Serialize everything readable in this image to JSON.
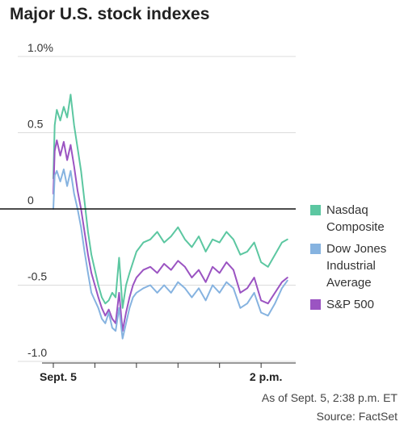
{
  "title": "Major U.S. stock indexes",
  "note_asof": "As of Sept. 5, 2:38 p.m. ET",
  "note_source": "Source: FactSet",
  "colors": {
    "nasdaq": "#5cc7a1",
    "dow": "#86b3e0",
    "sp500": "#9b54c2",
    "grid": "#dcdcdc",
    "zero": "#111111"
  },
  "chart_data": {
    "type": "line",
    "title": "Major U.S. stock indexes",
    "xlabel": "",
    "ylabel": "",
    "ylim": [
      -1.0,
      1.0
    ],
    "yticks": [
      {
        "value": 1.0,
        "label": "1.0%"
      },
      {
        "value": 0.5,
        "label": "0.5"
      },
      {
        "value": 0,
        "label": "0"
      },
      {
        "value": -0.5,
        "label": "-0.5"
      },
      {
        "value": -1.0,
        "label": "-1.0"
      }
    ],
    "xticks": [
      {
        "t": 0,
        "label": "Sept. 5"
      },
      {
        "t": 60,
        "label": ""
      },
      {
        "t": 120,
        "label": ""
      },
      {
        "t": 180,
        "label": ""
      },
      {
        "t": 240,
        "label": ""
      },
      {
        "t": 300,
        "label": "2 p.m."
      }
    ],
    "xlim": [
      0,
      350
    ],
    "grid": true,
    "legend_position": "right",
    "x": [
      0,
      2,
      5,
      10,
      15,
      20,
      25,
      30,
      35,
      40,
      45,
      50,
      55,
      60,
      65,
      70,
      75,
      80,
      85,
      90,
      95,
      100,
      105,
      110,
      115,
      120,
      130,
      140,
      150,
      160,
      170,
      180,
      190,
      200,
      210,
      220,
      230,
      240,
      250,
      260,
      270,
      280,
      290,
      300,
      310,
      320,
      330,
      338
    ],
    "series": [
      {
        "name": "Nasdaq Composite",
        "color_key": "nasdaq",
        "values": [
          0.2,
          0.55,
          0.65,
          0.58,
          0.67,
          0.6,
          0.75,
          0.55,
          0.4,
          0.25,
          0.05,
          -0.15,
          -0.3,
          -0.4,
          -0.5,
          -0.58,
          -0.62,
          -0.6,
          -0.55,
          -0.58,
          -0.32,
          -0.65,
          -0.5,
          -0.42,
          -0.35,
          -0.28,
          -0.22,
          -0.2,
          -0.15,
          -0.22,
          -0.18,
          -0.12,
          -0.2,
          -0.25,
          -0.18,
          -0.28,
          -0.2,
          -0.22,
          -0.15,
          -0.2,
          -0.3,
          -0.28,
          -0.22,
          -0.35,
          -0.38,
          -0.3,
          -0.22,
          -0.2
        ]
      },
      {
        "name": "Dow Jones Industrial Average",
        "color_key": "dow",
        "values": [
          0.0,
          0.22,
          0.25,
          0.18,
          0.26,
          0.15,
          0.25,
          0.1,
          0.0,
          -0.12,
          -0.28,
          -0.42,
          -0.55,
          -0.6,
          -0.65,
          -0.72,
          -0.75,
          -0.68,
          -0.78,
          -0.8,
          -0.65,
          -0.85,
          -0.75,
          -0.65,
          -0.58,
          -0.55,
          -0.52,
          -0.5,
          -0.55,
          -0.5,
          -0.55,
          -0.48,
          -0.52,
          -0.58,
          -0.52,
          -0.6,
          -0.5,
          -0.55,
          -0.48,
          -0.52,
          -0.65,
          -0.62,
          -0.55,
          -0.68,
          -0.7,
          -0.62,
          -0.52,
          -0.47
        ]
      },
      {
        "name": "S&P 500",
        "color_key": "sp500",
        "values": [
          0.1,
          0.38,
          0.45,
          0.35,
          0.44,
          0.32,
          0.42,
          0.28,
          0.12,
          0.0,
          -0.15,
          -0.3,
          -0.42,
          -0.5,
          -0.58,
          -0.65,
          -0.7,
          -0.66,
          -0.72,
          -0.75,
          -0.55,
          -0.8,
          -0.68,
          -0.58,
          -0.5,
          -0.45,
          -0.4,
          -0.38,
          -0.42,
          -0.36,
          -0.4,
          -0.34,
          -0.38,
          -0.45,
          -0.4,
          -0.48,
          -0.38,
          -0.42,
          -0.35,
          -0.4,
          -0.55,
          -0.52,
          -0.45,
          -0.6,
          -0.62,
          -0.55,
          -0.48,
          -0.45
        ]
      }
    ]
  }
}
